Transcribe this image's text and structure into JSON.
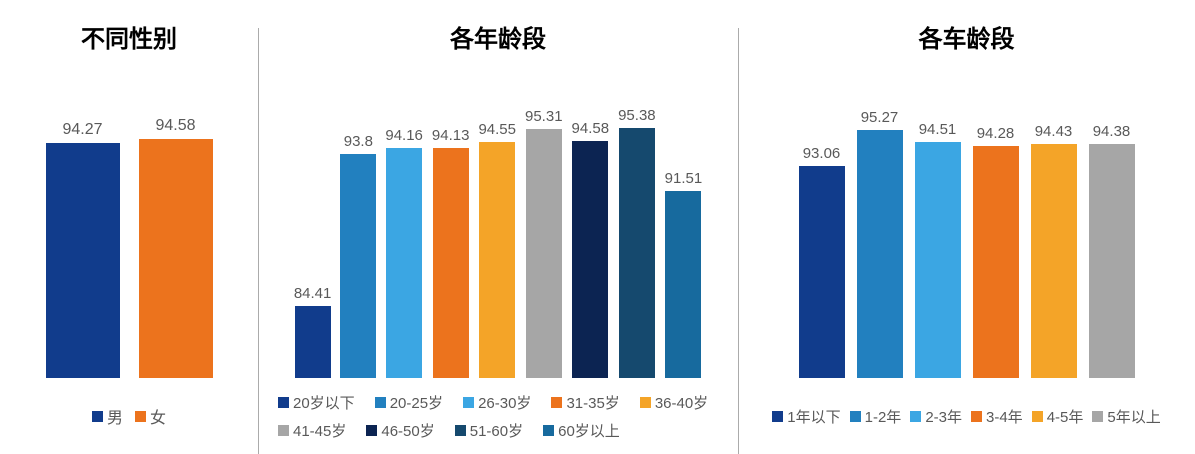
{
  "chart_data": [
    {
      "type": "bar",
      "title": "不同性别",
      "categories": [
        "男",
        "女"
      ],
      "values": [
        94.27,
        94.58
      ],
      "labels": [
        "94.27",
        "94.58"
      ],
      "colors": [
        "#113C8C",
        "#EC731D"
      ],
      "ylim": [
        78,
        96
      ],
      "grid": false,
      "legend_position": "bottom"
    },
    {
      "type": "bar",
      "title": "各年龄段",
      "categories": [
        "20岁以下",
        "20-25岁",
        "26-30岁",
        "31-35岁",
        "36-40岁",
        "41-45岁",
        "46-50岁",
        "51-60岁",
        "60岁以上"
      ],
      "values": [
        84.41,
        93.8,
        94.16,
        94.13,
        94.55,
        95.31,
        94.58,
        95.38,
        91.51
      ],
      "labels": [
        "84.41",
        "93.8",
        "94.16",
        "94.13",
        "94.55",
        "95.31",
        "94.58",
        "95.38",
        "91.51"
      ],
      "colors": [
        "#113C8C",
        "#2280BF",
        "#3BA6E3",
        "#EC731D",
        "#F4A428",
        "#A6A6A6",
        "#0C2452",
        "#15496E",
        "#176A9E"
      ],
      "ylim": [
        80,
        96
      ],
      "grid": false,
      "legend_position": "bottom"
    },
    {
      "type": "bar",
      "title": "各车龄段",
      "categories": [
        "1年以下",
        "1-2年",
        "2-3年",
        "3-4年",
        "4-5年",
        "5年以上"
      ],
      "values": [
        93.06,
        95.27,
        94.51,
        94.28,
        94.43,
        94.38
      ],
      "labels": [
        "93.06",
        "95.27",
        "94.51",
        "94.28",
        "94.43",
        "94.38"
      ],
      "colors": [
        "#113C8C",
        "#2280BF",
        "#3BA6E3",
        "#EC731D",
        "#F4A428",
        "#A6A6A6"
      ],
      "ylim": [
        80,
        96
      ],
      "grid": false,
      "legend_position": "bottom"
    }
  ],
  "layout": {
    "divider_color": "#ABABAB"
  }
}
